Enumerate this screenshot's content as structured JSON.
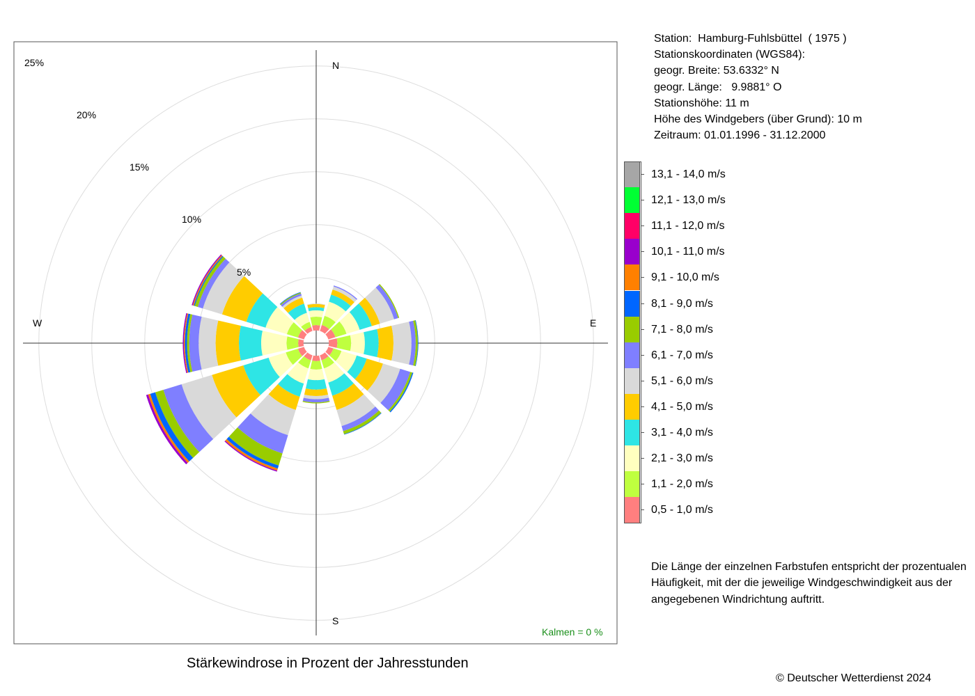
{
  "chart_data": {
    "type": "windrose",
    "title": "Stärkewindrose in Prozent der Jahresstunden",
    "directions": [
      "N",
      "30°",
      "60°",
      "E",
      "120°",
      "150°",
      "S",
      "210°",
      "240°",
      "W",
      "300°",
      "330°"
    ],
    "direction_labels": {
      "N": "N",
      "E": "E",
      "S": "S",
      "W": "W"
    },
    "radial_ticks": [
      "5%",
      "10%",
      "15%",
      "20%",
      "25%"
    ],
    "radial_values": [
      5,
      10,
      15,
      20,
      25
    ],
    "center_hole_pct": 1.2,
    "calm_label": "Kalmen  =  0 %",
    "speed_classes": [
      {
        "label": "0,5 - 1,0 m/s",
        "color": "#ff7f7f"
      },
      {
        "label": "1,1 - 2,0 m/s",
        "color": "#bfff3f"
      },
      {
        "label": "2,1 - 3,0 m/s",
        "color": "#ffffbf"
      },
      {
        "label": "3,1 - 4,0 m/s",
        "color": "#2ee5e5"
      },
      {
        "label": "4,1 - 5,0 m/s",
        "color": "#ffcc00"
      },
      {
        "label": "5,1 - 6,0 m/s",
        "color": "#d9d9d9"
      },
      {
        "label": "6,1 - 7,0 m/s",
        "color": "#7f7fff"
      },
      {
        "label": "7,1 - 8,0 m/s",
        "color": "#99cc00"
      },
      {
        "label": "8,1 - 9,0 m/s",
        "color": "#0066ff"
      },
      {
        "label": "9,1 - 10,0 m/s",
        "color": "#ff8000"
      },
      {
        "label": "10,1 - 11,0 m/s",
        "color": "#9900cc"
      },
      {
        "label": "11,1 - 12,0 m/s",
        "color": "#ff0066"
      },
      {
        "label": "12,1 - 13,0 m/s",
        "color": "#00ff33"
      },
      {
        "label": "13,1 - 14,0 m/s",
        "color": "#a6a6a6"
      }
    ],
    "series": [
      {
        "values": [
          0.5,
          0.8,
          0.6,
          0.3,
          0.3,
          0.05,
          0,
          0,
          0,
          0,
          0,
          0,
          0,
          0
        ]
      },
      {
        "values": [
          0.6,
          0.9,
          1.4,
          0.7,
          0.5,
          0.3,
          0.1,
          0,
          0,
          0,
          0,
          0,
          0,
          0
        ]
      },
      {
        "values": [
          0.7,
          1.1,
          1.3,
          1.2,
          0.8,
          1.4,
          0.4,
          0.1,
          0,
          0,
          0,
          0,
          0,
          0
        ]
      },
      {
        "values": [
          0.8,
          1.3,
          1.3,
          1.3,
          1.4,
          1.7,
          0.4,
          0.2,
          0.05,
          0,
          0,
          0,
          0,
          0
        ]
      },
      {
        "values": [
          0.5,
          0.8,
          1.5,
          1.0,
          1.6,
          1.7,
          1.0,
          0.2,
          0.1,
          0,
          0,
          0,
          0,
          0
        ]
      },
      {
        "values": [
          0.5,
          0.8,
          1.4,
          1.3,
          1.4,
          1.6,
          0.5,
          0.3,
          0.05,
          0,
          0,
          0,
          0,
          0
        ]
      },
      {
        "values": [
          0.5,
          0.8,
          1.0,
          0.9,
          0.6,
          0.3,
          0.3,
          0.1,
          0,
          0,
          0,
          0,
          0,
          0
        ]
      },
      {
        "values": [
          0.5,
          0.8,
          1.5,
          1.3,
          1.3,
          2.5,
          1.8,
          1.2,
          0.3,
          0.2,
          0.1,
          0,
          0,
          0
        ]
      },
      {
        "values": [
          0.6,
          1.2,
          1.7,
          2.5,
          3.1,
          3.0,
          1.8,
          0.8,
          0.5,
          0.2,
          0.2,
          0,
          0,
          0
        ]
      },
      {
        "values": [
          0.5,
          1.1,
          2.4,
          2.1,
          2.2,
          1.6,
          0.9,
          0.2,
          0.2,
          0.1,
          0.1,
          0,
          0,
          0
        ]
      },
      {
        "values": [
          0.6,
          1.1,
          2.1,
          1.9,
          2.4,
          1.9,
          0.5,
          0.3,
          0.1,
          0.1,
          0.1,
          0,
          0,
          0
        ]
      },
      {
        "values": [
          0.4,
          0.5,
          0.9,
          0.9,
          0.6,
          0.2,
          0.2,
          0.1,
          0.05,
          0,
          0,
          0,
          0,
          0
        ]
      }
    ]
  },
  "station_info": [
    "Station:  Hamburg-Fuhlsbüttel  ( 1975 )",
    "Stationskoordinaten (WGS84):",
    "geogr. Breite: 53.6332° N",
    "geogr. Länge:   9.9881° O",
    "Stationshöhe: 11 m",
    "Höhe des Windgebers (über Grund): 10 m",
    "Zeitraum: 01.01.1996 - 31.12.2000"
  ],
  "note": "Die Länge der einzelnen Farbstufen entspricht der prozentualen Häufigkeit, mit der die jeweilige Windgeschwindigkeit aus der angegebenen Windrichtung auftritt.",
  "copyright": "© Deutscher Wetterdienst  2024"
}
